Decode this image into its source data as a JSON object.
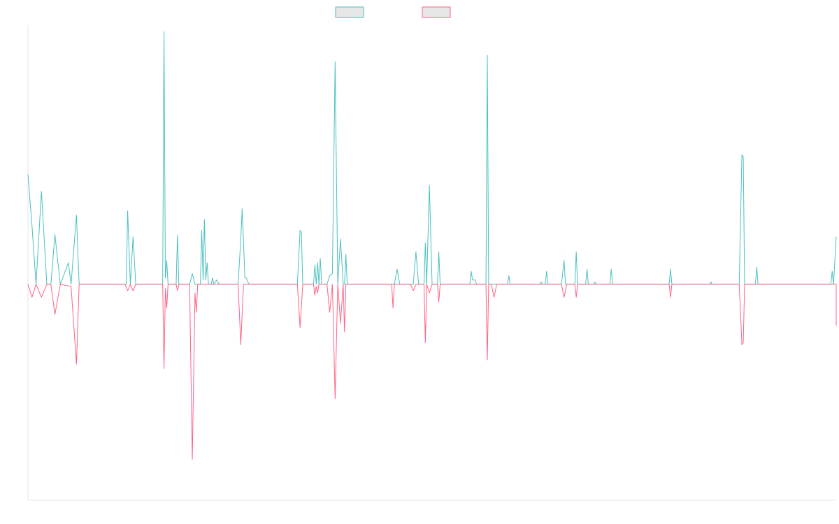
{
  "chart_data": {
    "type": "line",
    "title": "",
    "xlabel": "",
    "ylabel": "",
    "grid": false,
    "legend_position": "top-center",
    "ylim": [
      -100,
      120
    ],
    "x": [
      0,
      1,
      2,
      3,
      4,
      5,
      6,
      7,
      8,
      9,
      10,
      11,
      12,
      13,
      14,
      15,
      16,
      17,
      18,
      19,
      20,
      21,
      22,
      23,
      24,
      25,
      26,
      27,
      28,
      29,
      30,
      31,
      32,
      33,
      34,
      35,
      36,
      37,
      38,
      39,
      40,
      41,
      42,
      43,
      44,
      45,
      46,
      47,
      48,
      49,
      50,
      51,
      52,
      53,
      54,
      55,
      56,
      57,
      58,
      59,
      60,
      61,
      62,
      63,
      64,
      65,
      66,
      67,
      68,
      69,
      70,
      71,
      72,
      73,
      74,
      75,
      76,
      77,
      78,
      79,
      80,
      81,
      82,
      83,
      84,
      85,
      86,
      87,
      88,
      89,
      90,
      91,
      92,
      93,
      94,
      95,
      96,
      97,
      98,
      99,
      100,
      101,
      102,
      103,
      104,
      105,
      106,
      107,
      108,
      109,
      110,
      111,
      112,
      113,
      114,
      115,
      116,
      117,
      118,
      119,
      120,
      121,
      122,
      123,
      124,
      125,
      126,
      127,
      128,
      129,
      130,
      131,
      132,
      133,
      134,
      135,
      136,
      137,
      138,
      139,
      140,
      141,
      142,
      143,
      144,
      145,
      146,
      147,
      148,
      149,
      150,
      151,
      152,
      153,
      154,
      155,
      156,
      157,
      158,
      159,
      160,
      161,
      162,
      163,
      164,
      165,
      166,
      167,
      168,
      169,
      170,
      171,
      172,
      173,
      174,
      175,
      176,
      177,
      178,
      179,
      180,
      181,
      182,
      183,
      184,
      185,
      186,
      187,
      188,
      189,
      190,
      191,
      192,
      193,
      194,
      195,
      196,
      197,
      198,
      199,
      200,
      201,
      202,
      203,
      204,
      205,
      206,
      207,
      208,
      209,
      210,
      211,
      212,
      213,
      214,
      215,
      216,
      217,
      218,
      219,
      220,
      221,
      222,
      223,
      224,
      225,
      226,
      227,
      228,
      229,
      230,
      231,
      232,
      233,
      234,
      235,
      236,
      237,
      238,
      239,
      240,
      241,
      242,
      243,
      244,
      245,
      246,
      247,
      248,
      249,
      250,
      251,
      252,
      253,
      254,
      255,
      256,
      257,
      258,
      259,
      260,
      261,
      262,
      263,
      264,
      265,
      266,
      267,
      268,
      269,
      270,
      271,
      272,
      273,
      274,
      275,
      276,
      277,
      278,
      279,
      280,
      281,
      282,
      283,
      284,
      285,
      286,
      287,
      288,
      289,
      290,
      291,
      292,
      293,
      294,
      295,
      296,
      297,
      298,
      299,
      300
    ],
    "series": [
      {
        "name": "",
        "color": "#4bc0c0",
        "fill": "#e6e6e6",
        "points": [
          [
            0,
            51
          ],
          [
            1.5,
            27
          ],
          [
            3,
            0
          ],
          [
            5,
            43
          ],
          [
            7,
            0
          ],
          [
            8.5,
            0
          ],
          [
            10,
            23
          ],
          [
            12,
            0
          ],
          [
            15,
            10
          ],
          [
            16,
            0
          ],
          [
            18,
            32
          ],
          [
            19,
            0
          ],
          [
            36,
            0
          ],
          [
            36.5,
            0
          ],
          [
            37,
            34
          ],
          [
            38,
            0
          ],
          [
            39,
            22
          ],
          [
            40,
            0
          ],
          [
            50,
            0
          ],
          [
            50.5,
            117
          ],
          [
            51,
            3
          ],
          [
            51.5,
            11
          ],
          [
            52,
            0
          ],
          [
            55,
            0
          ],
          [
            55.5,
            23
          ],
          [
            56,
            0
          ],
          [
            60,
            0
          ],
          [
            61,
            5
          ],
          [
            62,
            0
          ],
          [
            64,
            0
          ],
          [
            64.5,
            25
          ],
          [
            65,
            2
          ],
          [
            65.5,
            30
          ],
          [
            66,
            2
          ],
          [
            66.5,
            10
          ],
          [
            67,
            0
          ],
          [
            68,
            0
          ],
          [
            68.5,
            3
          ],
          [
            69,
            0
          ],
          [
            70,
            2
          ],
          [
            71,
            0
          ],
          [
            78,
            0
          ],
          [
            79,
            21
          ],
          [
            79.5,
            35
          ],
          [
            80,
            20
          ],
          [
            80.5,
            3
          ],
          [
            81,
            3
          ],
          [
            82,
            0
          ],
          [
            100,
            0
          ],
          [
            101,
            25
          ],
          [
            101.5,
            24
          ],
          [
            102,
            0
          ],
          [
            106,
            0
          ],
          [
            106.5,
            9
          ],
          [
            107,
            0
          ],
          [
            107.5,
            10
          ],
          [
            108,
            0
          ],
          [
            108.5,
            12
          ],
          [
            109,
            0
          ],
          [
            111,
            0
          ],
          [
            112,
            4
          ],
          [
            113,
            5
          ],
          [
            114,
            103
          ],
          [
            115,
            0
          ],
          [
            116,
            21
          ],
          [
            117,
            0
          ],
          [
            117.5,
            0
          ],
          [
            118,
            14
          ],
          [
            118.5,
            0
          ],
          [
            136,
            0
          ],
          [
            137,
            7
          ],
          [
            138,
            0
          ],
          [
            143,
            0
          ],
          [
            144,
            15
          ],
          [
            145,
            0
          ],
          [
            147,
            0
          ],
          [
            147.5,
            19
          ],
          [
            148,
            0
          ],
          [
            149,
            46
          ],
          [
            150,
            0
          ],
          [
            152,
            0
          ],
          [
            152.5,
            15
          ],
          [
            153,
            0
          ],
          [
            164,
            0
          ],
          [
            164.5,
            6
          ],
          [
            165,
            2
          ],
          [
            166,
            2
          ],
          [
            166.5,
            0
          ],
          [
            170,
            0
          ],
          [
            170.5,
            106
          ],
          [
            171,
            0
          ],
          [
            178,
            0
          ],
          [
            178.5,
            4
          ],
          [
            179,
            0
          ],
          [
            190,
            0
          ],
          [
            190.5,
            1
          ],
          [
            191,
            0
          ],
          [
            192,
            0
          ],
          [
            192.5,
            6
          ],
          [
            193,
            0
          ],
          [
            198,
            0
          ],
          [
            199,
            11
          ],
          [
            199.5,
            0
          ],
          [
            203,
            0
          ],
          [
            203.5,
            15
          ],
          [
            204,
            0
          ],
          [
            207,
            0
          ],
          [
            207.5,
            7
          ],
          [
            208,
            0
          ],
          [
            210,
            0
          ],
          [
            210.5,
            1
          ],
          [
            211,
            0
          ],
          [
            216,
            0
          ],
          [
            216.5,
            7
          ],
          [
            217,
            0
          ],
          [
            238,
            0
          ],
          [
            238.5,
            7
          ],
          [
            239,
            0
          ],
          [
            253,
            0
          ],
          [
            253.5,
            1
          ],
          [
            254,
            0
          ],
          [
            264,
            0
          ],
          [
            265,
            60
          ],
          [
            265.5,
            59
          ],
          [
            266,
            0
          ],
          [
            270,
            0
          ],
          [
            270.5,
            8
          ],
          [
            271,
            0
          ],
          [
            298,
            0
          ],
          [
            298.5,
            6
          ],
          [
            299,
            0
          ],
          [
            300,
            22
          ]
        ]
      },
      {
        "name": "",
        "color": "#ff6384",
        "fill": "#e6e6e6",
        "points": [
          [
            0,
            0
          ],
          [
            1.5,
            -6
          ],
          [
            3,
            0
          ],
          [
            5,
            -6
          ],
          [
            7,
            0
          ],
          [
            8.5,
            0
          ],
          [
            10,
            -14
          ],
          [
            12,
            0
          ],
          [
            16,
            -1
          ],
          [
            18,
            -37
          ],
          [
            19,
            0
          ],
          [
            36,
            0
          ],
          [
            37,
            -3
          ],
          [
            38,
            0
          ],
          [
            39,
            -3
          ],
          [
            40,
            0
          ],
          [
            50,
            0
          ],
          [
            50.5,
            -39
          ],
          [
            51,
            -2
          ],
          [
            51.5,
            -11
          ],
          [
            52,
            0
          ],
          [
            55,
            0
          ],
          [
            55.5,
            -3
          ],
          [
            56,
            0
          ],
          [
            60,
            0
          ],
          [
            61,
            -81
          ],
          [
            62,
            -4
          ],
          [
            62.5,
            -13
          ],
          [
            63,
            0
          ],
          [
            78,
            0
          ],
          [
            79,
            -28
          ],
          [
            80,
            0
          ],
          [
            100,
            0
          ],
          [
            101,
            -20
          ],
          [
            102,
            0
          ],
          [
            106,
            0
          ],
          [
            106.5,
            -5
          ],
          [
            107,
            -1
          ],
          [
            107.5,
            -4
          ],
          [
            108,
            0
          ],
          [
            111,
            0
          ],
          [
            112,
            -13
          ],
          [
            113,
            0
          ],
          [
            114,
            -53
          ],
          [
            115,
            0
          ],
          [
            116,
            -18
          ],
          [
            117,
            0
          ],
          [
            117.5,
            -22
          ],
          [
            118,
            0
          ],
          [
            135,
            0
          ],
          [
            135.5,
            -11
          ],
          [
            136,
            0
          ],
          [
            142,
            0
          ],
          [
            143,
            -3
          ],
          [
            144,
            0
          ],
          [
            147,
            0
          ],
          [
            147.5,
            -27
          ],
          [
            148,
            0
          ],
          [
            149,
            -4
          ],
          [
            150,
            0
          ],
          [
            152,
            0
          ],
          [
            152.5,
            -8
          ],
          [
            153,
            0
          ],
          [
            164,
            0
          ],
          [
            170,
            0
          ],
          [
            170.5,
            -35
          ],
          [
            171,
            0
          ],
          [
            172,
            0
          ],
          [
            173,
            -6
          ],
          [
            174,
            0
          ],
          [
            198,
            0
          ],
          [
            199,
            -6
          ],
          [
            200,
            0
          ],
          [
            203,
            0
          ],
          [
            203.5,
            -6
          ],
          [
            204,
            0
          ],
          [
            238,
            0
          ],
          [
            238.5,
            -6
          ],
          [
            239,
            0
          ],
          [
            264,
            0
          ],
          [
            265,
            -28
          ],
          [
            265.5,
            -27
          ],
          [
            266,
            0
          ],
          [
            300,
            0
          ],
          [
            300.5,
            -19
          ],
          [
            301,
            0
          ]
        ]
      }
    ]
  }
}
